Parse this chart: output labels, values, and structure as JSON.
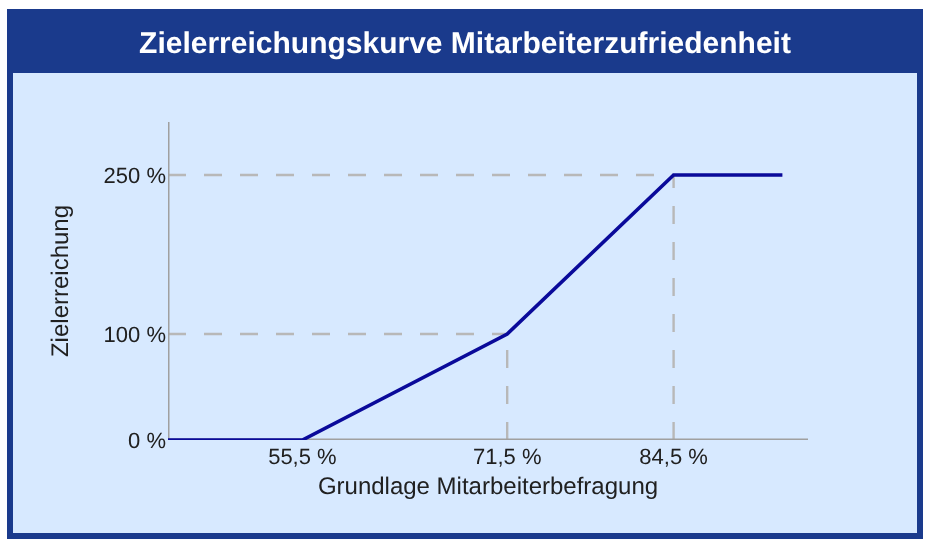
{
  "chart_data": {
    "type": "line",
    "title": "Zielerreichungskurve Mitarbeiterzufriedenheit",
    "xlabel": "Grundlage Mitarbeiterbefragung",
    "ylabel": "Zielerreichung",
    "x": [
      45,
      55.5,
      71.5,
      84.5,
      93
    ],
    "series": [
      {
        "color": "#0a0a9a",
        "values": [
          0,
          0,
          100,
          250,
          250
        ]
      }
    ],
    "xlim": [
      45,
      95
    ],
    "ylim": [
      0,
      300
    ],
    "xticks": [
      {
        "value": 55.5,
        "label": "55,5 %"
      },
      {
        "value": 71.5,
        "label": "71,5 %"
      },
      {
        "value": 84.5,
        "label": "84,5 %"
      }
    ],
    "yticks": [
      {
        "value": 0,
        "label": "0 %"
      },
      {
        "value": 100,
        "label": "100 %"
      },
      {
        "value": 250,
        "label": "250 %"
      }
    ],
    "ref_lines": [
      {
        "axis": "x",
        "value": 71.5,
        "color": "#b8b8b8",
        "line_style": "dashed"
      },
      {
        "axis": "x",
        "value": 84.5,
        "color": "#b8b8b8",
        "line_style": "dashed"
      },
      {
        "axis": "y",
        "value": 100,
        "color": "#b8b8b8",
        "line_style": "dashed"
      },
      {
        "axis": "y",
        "value": 250,
        "color": "#b8b8b8",
        "line_style": "dashed"
      }
    ],
    "grid": false,
    "marker": "none",
    "line_style": "solid"
  }
}
